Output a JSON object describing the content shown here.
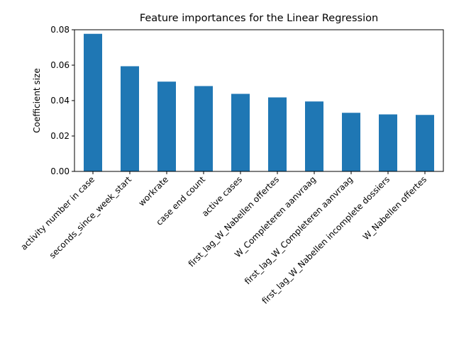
{
  "chart_data": {
    "type": "bar",
    "title": "Feature importances for the Linear Regression",
    "xlabel": "",
    "ylabel": "Coefficient size",
    "ylim": [
      0,
      0.08
    ],
    "yticks": [
      "0.00",
      "0.02",
      "0.04",
      "0.06",
      "0.08"
    ],
    "bar_color": "#1f77b4",
    "categories": [
      "activity number in case",
      "seconds_since_week_start",
      "workrate",
      "case end count",
      "active cases",
      "first_lag_W_Nabellen offertes",
      "W_Completeren aanvraag",
      "first_lag_W_Completeren aanvraag",
      "first_lag_W_Nabellen incomplete dossiers",
      "W_Nabellen offertes"
    ],
    "values": [
      0.0777,
      0.0594,
      0.0507,
      0.0482,
      0.0438,
      0.0418,
      0.0395,
      0.0331,
      0.0322,
      0.0319
    ]
  }
}
